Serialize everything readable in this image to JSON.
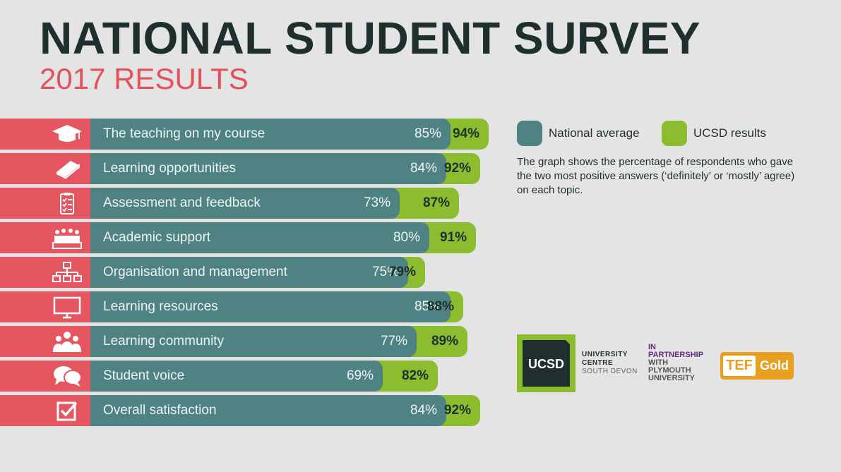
{
  "header": {
    "title": "NATIONAL STUDENT SURVEY",
    "subtitle": "2017 RESULTS"
  },
  "legend": {
    "national": "National average",
    "ucsd": "UCSD results",
    "note": "The graph shows the percentage of respondents who gave the two most positive answers (‘definitely’ or ‘mostly’ agree) on each topic."
  },
  "colors": {
    "national": "#4e8283",
    "ucsd": "#8bbd2e",
    "icon_bg": "#e65660",
    "title": "#1f2f2d",
    "subtitle": "#e3525a"
  },
  "chart_data": {
    "type": "bar",
    "orientation": "horizontal",
    "categories": [
      "The teaching on my course",
      "Learning opportunities",
      "Assessment and feedback",
      "Academic support",
      "Organisation and management",
      "Learning resources",
      "Learning community",
      "Student voice",
      "Overall satisfaction"
    ],
    "icons": [
      "graduation-cap-icon",
      "book-icon",
      "clipboard-checklist-icon",
      "meeting-icon",
      "org-chart-icon",
      "monitor-icon",
      "community-icon",
      "speech-bubbles-icon",
      "checkbox-icon"
    ],
    "series": [
      {
        "name": "National average",
        "values": [
          85,
          84,
          73,
          80,
          75,
          85,
          77,
          69,
          84
        ],
        "labels": [
          "85%",
          "84%",
          "73%",
          "80%",
          "75%",
          "85%",
          "77%",
          "69%",
          "84%"
        ]
      },
      {
        "name": "UCSD results",
        "values": [
          94,
          92,
          87,
          91,
          79,
          88,
          89,
          82,
          92
        ],
        "labels": [
          "94%",
          "92%",
          "87%",
          "91%",
          "79%",
          "88%",
          "89%",
          "82%",
          "92%"
        ]
      }
    ]
  },
  "logos": {
    "ucsd_mark": "UCSD",
    "ucsd_line1": "UNIVERSITY",
    "ucsd_line2": "CENTRE",
    "ucsd_line3": "SOUTH DEVON",
    "partner_line1": "IN",
    "partner_line2": "PARTNERSHIP",
    "partner_line3": "WITH",
    "partner_line4": "PLYMOUTH",
    "partner_line5": "UNIVERSITY",
    "tef": "TEF",
    "tef_grade": "Gold"
  }
}
